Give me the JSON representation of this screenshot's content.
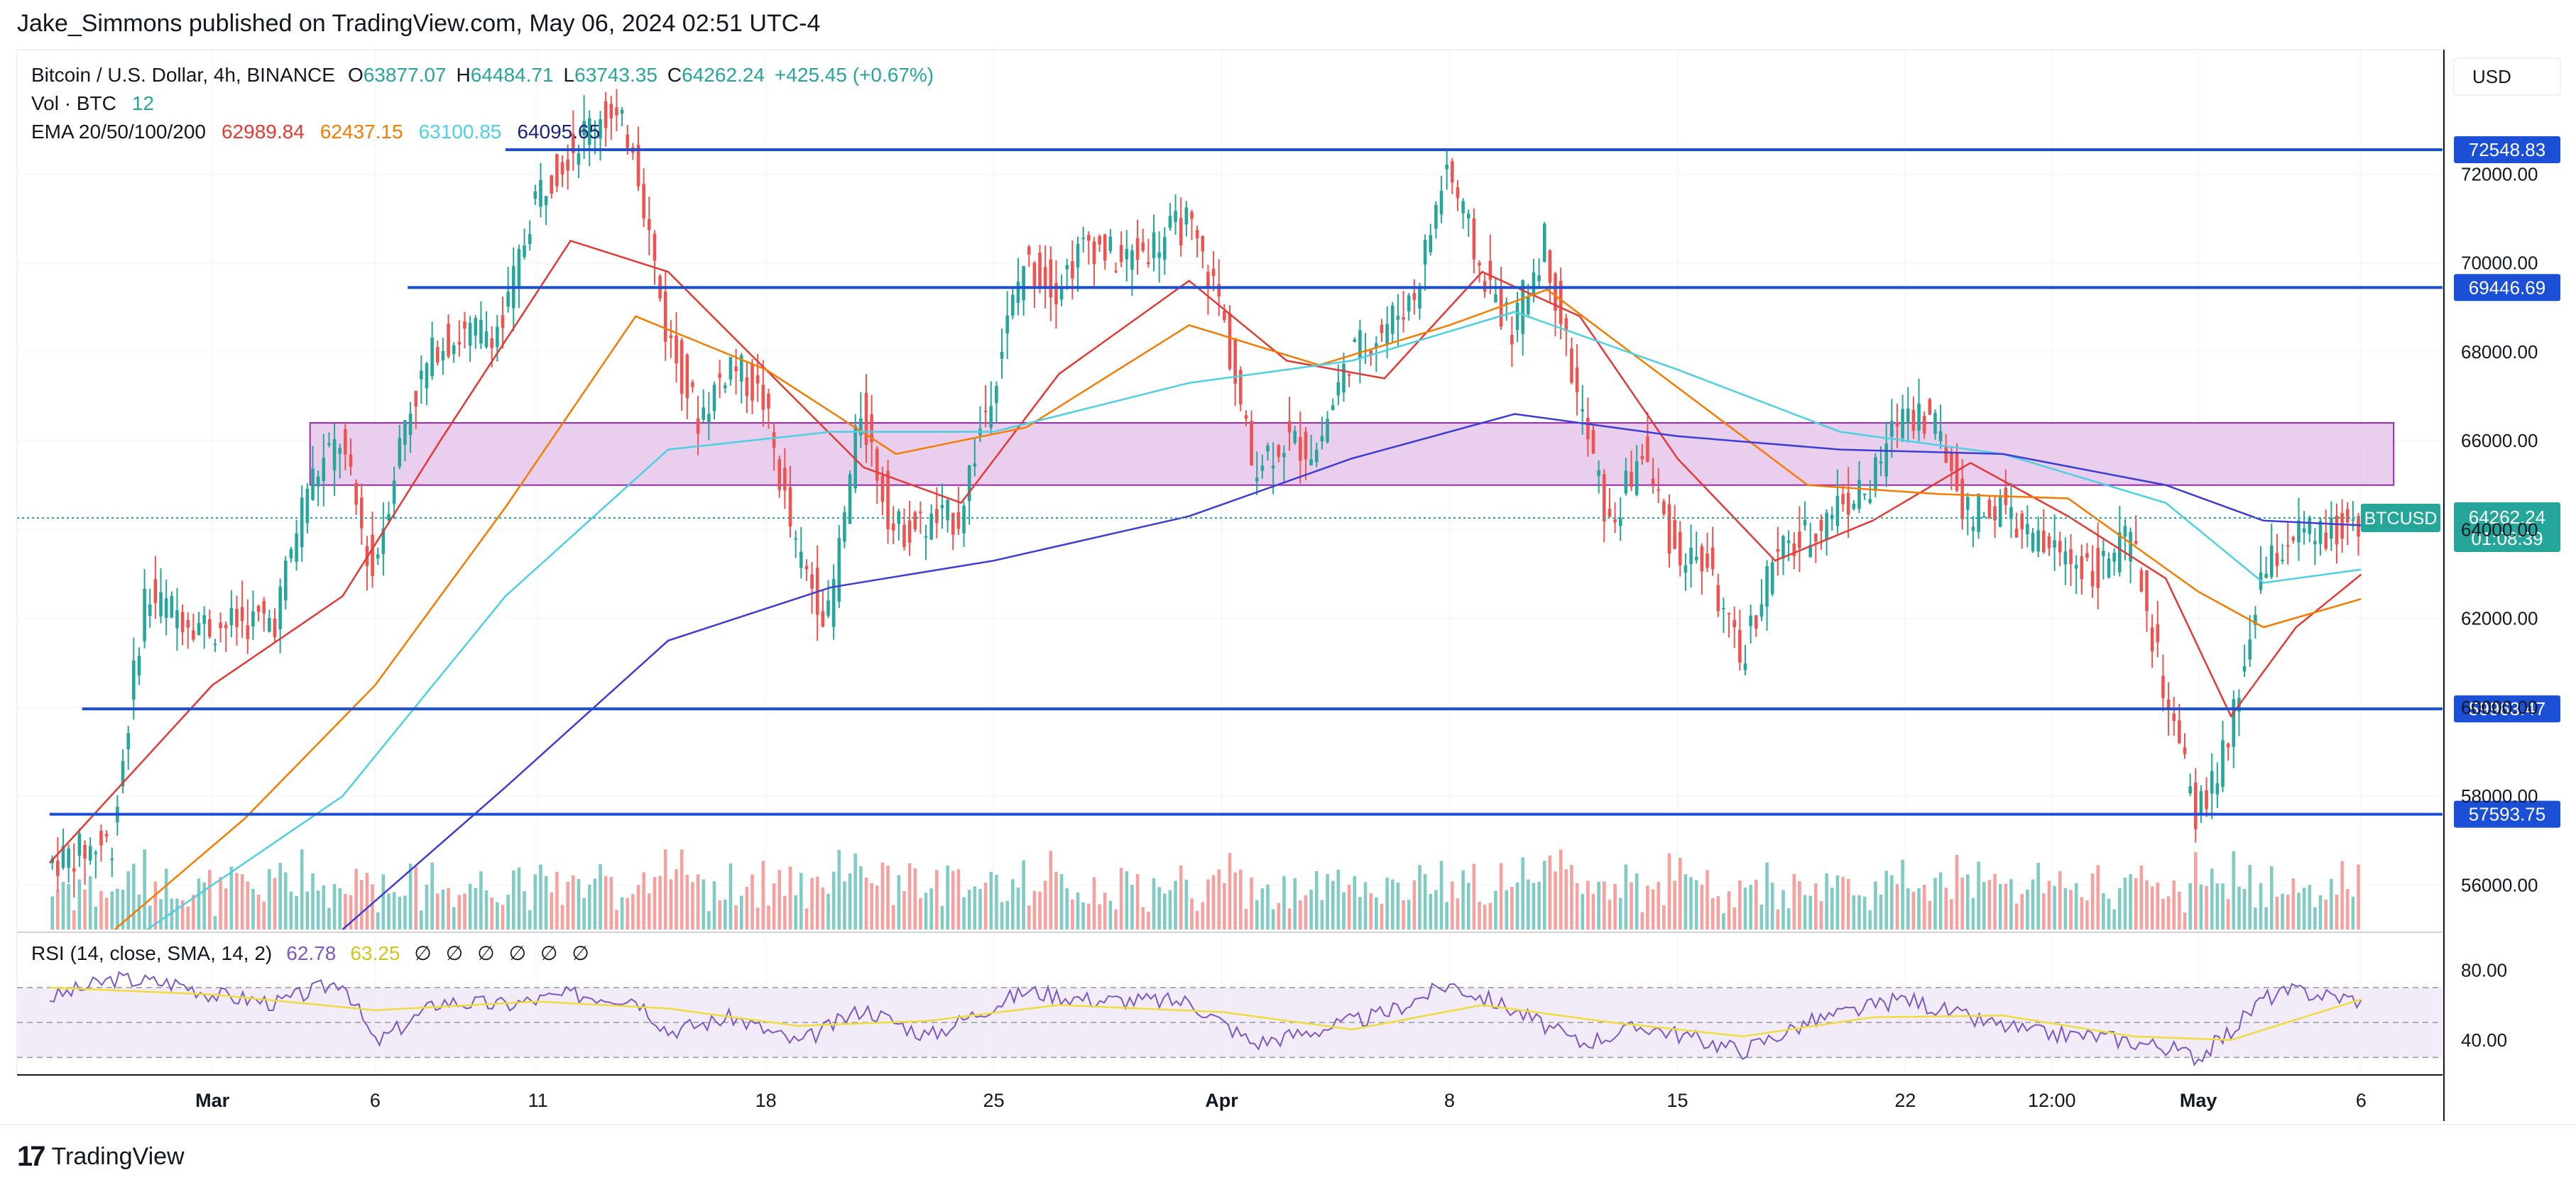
{
  "header": {
    "byline": "Jake_Simmons published on TradingView.com, May 06, 2024 02:51 UTC-4"
  },
  "footer": {
    "brand": "TradingView",
    "logo_icon": "tradingview-logo-icon"
  },
  "legend": {
    "symbol": "Bitcoin / U.S. Dollar, 4h, BINANCE",
    "ohlc": [
      {
        "k": "O",
        "v": "63877.07"
      },
      {
        "k": "H",
        "v": "64484.71"
      },
      {
        "k": "L",
        "v": "63743.35"
      },
      {
        "k": "C",
        "v": "64262.24"
      }
    ],
    "change": "+425.45 (+0.67%)",
    "vol_label": "Vol · BTC",
    "vol_value": "12",
    "ema_label": "EMA 20/50/100/200",
    "ema_values": [
      {
        "v": "62989.84",
        "color": "#e53935"
      },
      {
        "v": "62437.15",
        "color": "#f57c00"
      },
      {
        "v": "63100.85",
        "color": "#4dd0e1"
      },
      {
        "v": "64095.65",
        "color": "#1a237e"
      }
    ],
    "rsi_label": "RSI (14, close, SMA, 14, 2)",
    "rsi_values": [
      {
        "v": "62.78",
        "color": "#7e57c2"
      },
      {
        "v": "63.25",
        "color": "#d4c41a"
      }
    ],
    "rsi_empty": [
      "∅",
      "∅",
      "∅",
      "∅",
      "∅",
      "∅"
    ]
  },
  "chart_data": {
    "type": "candlestick",
    "currency_label": "USD",
    "symbol_tag": "BTCUSD",
    "last_price": "64262.24",
    "countdown": "01:08:39",
    "colors": {
      "up": "#26a69a",
      "down": "#ef5350",
      "vol_up": "#80cbc4",
      "vol_down": "#f7a19f",
      "level": "#1a4fd6",
      "zone": "#e1bee7",
      "zone_border": "#9c27b0",
      "rsi": "#7e57c2",
      "rsi_ma": "#f0dc3c"
    },
    "y_ticks": [
      56000,
      58000,
      60000,
      62000,
      64000,
      66000,
      68000,
      70000,
      72000
    ],
    "ylim": [
      55000,
      74800
    ],
    "x_ticks": [
      {
        "t": "2024-03-01",
        "label": "Mar"
      },
      {
        "t": "2024-03-06",
        "label": "6"
      },
      {
        "t": "2024-03-11",
        "label": "11"
      },
      {
        "t": "2024-03-18",
        "label": "18"
      },
      {
        "t": "2024-03-25",
        "label": "25"
      },
      {
        "t": "2024-04-01",
        "label": "Apr"
      },
      {
        "t": "2024-04-08",
        "label": "8"
      },
      {
        "t": "2024-04-15",
        "label": "15"
      },
      {
        "t": "2024-04-22",
        "label": "22"
      },
      {
        "t": "2024-04-26 12:00",
        "label": "12:00"
      },
      {
        "t": "2024-05-01",
        "label": "May"
      },
      {
        "t": "2024-05-06",
        "label": "6"
      }
    ],
    "levels": [
      {
        "price": 72548.83,
        "label": "72548.83",
        "from": "2024-03-10"
      },
      {
        "price": 69446.69,
        "label": "69446.69",
        "from": "2024-03-07"
      },
      {
        "price": 59963.47,
        "label": "59963.47",
        "from": "2024-02-26"
      },
      {
        "price": 57593.75,
        "label": "57593.75",
        "from": "2024-02-25"
      }
    ],
    "zone": {
      "from": "2024-03-04",
      "to": "2024-05-07",
      "top": 66400,
      "bottom": 65000
    },
    "closes": [
      {
        "t": "2024-02-25",
        "c": 56500
      },
      {
        "t": "2024-02-27",
        "c": 57000
      },
      {
        "t": "2024-02-28",
        "c": 62500
      },
      {
        "t": "2024-03-01",
        "c": 61800
      },
      {
        "t": "2024-03-03",
        "c": 62000
      },
      {
        "t": "2024-03-04",
        "c": 65000
      },
      {
        "t": "2024-03-05",
        "c": 66000
      },
      {
        "t": "2024-03-06",
        "c": 63000
      },
      {
        "t": "2024-03-07",
        "c": 66500
      },
      {
        "t": "2024-03-08",
        "c": 68200
      },
      {
        "t": "2024-03-10",
        "c": 68600
      },
      {
        "t": "2024-03-11",
        "c": 71500
      },
      {
        "t": "2024-03-12",
        "c": 72500
      },
      {
        "t": "2024-03-13",
        "c": 73400
      },
      {
        "t": "2024-03-14",
        "c": 72800
      },
      {
        "t": "2024-03-15",
        "c": 68500
      },
      {
        "t": "2024-03-16",
        "c": 66500
      },
      {
        "t": "2024-03-17",
        "c": 67800
      },
      {
        "t": "2024-03-18",
        "c": 66900
      },
      {
        "t": "2024-03-19",
        "c": 63500
      },
      {
        "t": "2024-03-20",
        "c": 62000
      },
      {
        "t": "2024-03-21",
        "c": 66700
      },
      {
        "t": "2024-03-22",
        "c": 64000
      },
      {
        "t": "2024-03-23",
        "c": 64100
      },
      {
        "t": "2024-03-24",
        "c": 64300
      },
      {
        "t": "2024-03-25",
        "c": 67200
      },
      {
        "t": "2024-03-26",
        "c": 70000
      },
      {
        "t": "2024-03-27",
        "c": 69500
      },
      {
        "t": "2024-03-28",
        "c": 70500
      },
      {
        "t": "2024-03-29",
        "c": 70000
      },
      {
        "t": "2024-03-31",
        "c": 70900
      },
      {
        "t": "2024-04-01",
        "c": 69200
      },
      {
        "t": "2024-04-02",
        "c": 65500
      },
      {
        "t": "2024-04-03",
        "c": 66000
      },
      {
        "t": "2024-04-04",
        "c": 65800
      },
      {
        "t": "2024-04-05",
        "c": 67900
      },
      {
        "t": "2024-04-06",
        "c": 68500
      },
      {
        "t": "2024-04-07",
        "c": 69300
      },
      {
        "t": "2024-04-08",
        "c": 72200
      },
      {
        "t": "2024-04-09",
        "c": 69900
      },
      {
        "t": "2024-04-10",
        "c": 68500
      },
      {
        "t": "2024-04-11",
        "c": 70500
      },
      {
        "t": "2024-04-12",
        "c": 67000
      },
      {
        "t": "2024-04-13",
        "c": 64000
      },
      {
        "t": "2024-04-14",
        "c": 65800
      },
      {
        "t": "2024-04-15",
        "c": 63500
      },
      {
        "t": "2024-04-16",
        "c": 63200
      },
      {
        "t": "2024-04-17",
        "c": 61000
      },
      {
        "t": "2024-04-18",
        "c": 63300
      },
      {
        "t": "2024-04-19",
        "c": 63800
      },
      {
        "t": "2024-04-20",
        "c": 64600
      },
      {
        "t": "2024-04-21",
        "c": 64900
      },
      {
        "t": "2024-04-22",
        "c": 66800
      },
      {
        "t": "2024-04-23",
        "c": 66400
      },
      {
        "t": "2024-04-24",
        "c": 64300
      },
      {
        "t": "2024-04-25",
        "c": 64500
      },
      {
        "t": "2024-04-26",
        "c": 63700
      },
      {
        "t": "2024-04-27",
        "c": 63400
      },
      {
        "t": "2024-04-28",
        "c": 63100
      },
      {
        "t": "2024-04-29",
        "c": 63800
      },
      {
        "t": "2024-04-30",
        "c": 60500
      },
      {
        "t": "2024-05-01",
        "c": 57500
      },
      {
        "t": "2024-05-02",
        "c": 59100
      },
      {
        "t": "2024-05-03",
        "c": 62900
      },
      {
        "t": "2024-05-04",
        "c": 63900
      },
      {
        "t": "2024-05-05",
        "c": 63800
      },
      {
        "t": "2024-05-06",
        "c": 64262
      }
    ],
    "ema_series": [
      {
        "name": "EMA 20",
        "color": "#e53935",
        "points": [
          [
            "2024-02-25",
            56500
          ],
          [
            "2024-03-01",
            60500
          ],
          [
            "2024-03-05",
            62500
          ],
          [
            "2024-03-08",
            66000
          ],
          [
            "2024-03-12",
            70500
          ],
          [
            "2024-03-15",
            69800
          ],
          [
            "2024-03-18",
            67600
          ],
          [
            "2024-03-21",
            65400
          ],
          [
            "2024-03-24",
            64600
          ],
          [
            "2024-03-27",
            67500
          ],
          [
            "2024-03-31",
            69600
          ],
          [
            "2024-04-03",
            67800
          ],
          [
            "2024-04-06",
            67400
          ],
          [
            "2024-04-09",
            69800
          ],
          [
            "2024-04-12",
            68800
          ],
          [
            "2024-04-15",
            65600
          ],
          [
            "2024-04-18",
            63300
          ],
          [
            "2024-04-21",
            64200
          ],
          [
            "2024-04-24",
            65500
          ],
          [
            "2024-04-27",
            64300
          ],
          [
            "2024-04-30",
            62900
          ],
          [
            "2024-05-02",
            59800
          ],
          [
            "2024-05-04",
            61800
          ],
          [
            "2024-05-06",
            62990
          ]
        ]
      },
      {
        "name": "EMA 50",
        "color": "#f57c00",
        "points": [
          [
            "2024-02-27",
            55000
          ],
          [
            "2024-03-02",
            57500
          ],
          [
            "2024-03-06",
            60500
          ],
          [
            "2024-03-10",
            64500
          ],
          [
            "2024-03-14",
            68800
          ],
          [
            "2024-03-18",
            67600
          ],
          [
            "2024-03-22",
            65700
          ],
          [
            "2024-03-26",
            66300
          ],
          [
            "2024-03-31",
            68600
          ],
          [
            "2024-04-04",
            67700
          ],
          [
            "2024-04-08",
            68600
          ],
          [
            "2024-04-11",
            69400
          ],
          [
            "2024-04-15",
            67200
          ],
          [
            "2024-04-19",
            65000
          ],
          [
            "2024-04-23",
            64800
          ],
          [
            "2024-04-27",
            64700
          ],
          [
            "2024-05-01",
            62600
          ],
          [
            "2024-05-03",
            61800
          ],
          [
            "2024-05-06",
            62437
          ]
        ]
      },
      {
        "name": "EMA 100",
        "color": "#4dd0e1",
        "points": [
          [
            "2024-02-28",
            55000
          ],
          [
            "2024-03-05",
            58000
          ],
          [
            "2024-03-10",
            62500
          ],
          [
            "2024-03-15",
            65800
          ],
          [
            "2024-03-20",
            66200
          ],
          [
            "2024-03-25",
            66200
          ],
          [
            "2024-03-31",
            67300
          ],
          [
            "2024-04-05",
            67800
          ],
          [
            "2024-04-10",
            68900
          ],
          [
            "2024-04-15",
            67600
          ],
          [
            "2024-04-20",
            66200
          ],
          [
            "2024-04-25",
            65700
          ],
          [
            "2024-04-30",
            64600
          ],
          [
            "2024-05-03",
            62800
          ],
          [
            "2024-05-06",
            63101
          ]
        ]
      },
      {
        "name": "EMA 200",
        "color": "#3d3dd6",
        "points": [
          [
            "2024-03-05",
            55000
          ],
          [
            "2024-03-10",
            58200
          ],
          [
            "2024-03-15",
            61500
          ],
          [
            "2024-03-20",
            62700
          ],
          [
            "2024-03-25",
            63300
          ],
          [
            "2024-03-31",
            64300
          ],
          [
            "2024-04-05",
            65600
          ],
          [
            "2024-04-10",
            66600
          ],
          [
            "2024-04-15",
            66100
          ],
          [
            "2024-04-20",
            65800
          ],
          [
            "2024-04-25",
            65700
          ],
          [
            "2024-04-30",
            65000
          ],
          [
            "2024-05-03",
            64200
          ],
          [
            "2024-05-06",
            64096
          ]
        ]
      }
    ],
    "rsi": {
      "y_ticks": [
        80,
        40
      ],
      "ylim": [
        20,
        100
      ],
      "band": [
        30,
        70
      ],
      "points": [
        [
          "2024-02-25",
          64
        ],
        [
          "2024-02-27",
          75
        ],
        [
          "2024-02-29",
          72
        ],
        [
          "2024-03-01",
          66
        ],
        [
          "2024-03-03",
          61
        ],
        [
          "2024-03-05",
          74
        ],
        [
          "2024-03-06",
          38
        ],
        [
          "2024-03-08",
          62
        ],
        [
          "2024-03-10",
          60
        ],
        [
          "2024-03-12",
          66
        ],
        [
          "2024-03-14",
          64
        ],
        [
          "2024-03-15",
          45
        ],
        [
          "2024-03-17",
          53
        ],
        [
          "2024-03-19",
          38
        ],
        [
          "2024-03-21",
          58
        ],
        [
          "2024-03-23",
          42
        ],
        [
          "2024-03-25",
          60
        ],
        [
          "2024-03-26",
          68
        ],
        [
          "2024-03-28",
          63
        ],
        [
          "2024-03-31",
          62
        ],
        [
          "2024-04-02",
          38
        ],
        [
          "2024-04-04",
          46
        ],
        [
          "2024-04-06",
          55
        ],
        [
          "2024-04-08",
          72
        ],
        [
          "2024-04-10",
          57
        ],
        [
          "2024-04-12",
          38
        ],
        [
          "2024-04-14",
          48
        ],
        [
          "2024-04-17",
          34
        ],
        [
          "2024-04-19",
          50
        ],
        [
          "2024-04-22",
          64
        ],
        [
          "2024-04-24",
          52
        ],
        [
          "2024-04-26",
          44
        ],
        [
          "2024-04-28",
          42
        ],
        [
          "2024-04-30",
          36
        ],
        [
          "2024-05-01",
          30
        ],
        [
          "2024-05-02",
          45
        ],
        [
          "2024-05-03",
          64
        ],
        [
          "2024-05-04",
          68
        ],
        [
          "2024-05-06",
          62.78
        ]
      ],
      "ma_points": [
        [
          "2024-02-25",
          70
        ],
        [
          "2024-03-01",
          66
        ],
        [
          "2024-03-06",
          57
        ],
        [
          "2024-03-11",
          62
        ],
        [
          "2024-03-15",
          58
        ],
        [
          "2024-03-19",
          48
        ],
        [
          "2024-03-23",
          51
        ],
        [
          "2024-03-27",
          60
        ],
        [
          "2024-04-01",
          56
        ],
        [
          "2024-04-05",
          46
        ],
        [
          "2024-04-09",
          60
        ],
        [
          "2024-04-13",
          50
        ],
        [
          "2024-04-17",
          42
        ],
        [
          "2024-04-21",
          53
        ],
        [
          "2024-04-25",
          54
        ],
        [
          "2024-04-29",
          42
        ],
        [
          "2024-05-02",
          40
        ],
        [
          "2024-05-06",
          63.25
        ]
      ]
    }
  }
}
